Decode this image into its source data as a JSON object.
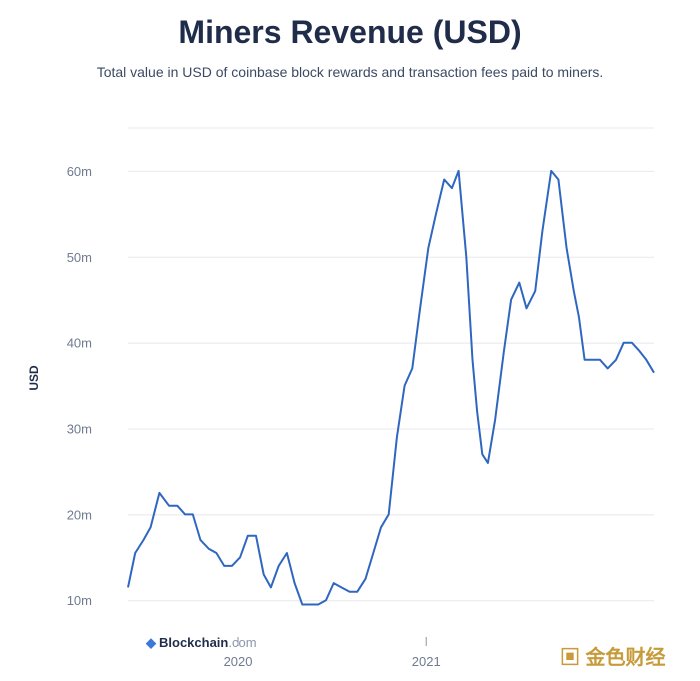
{
  "header": {
    "title": "Miners Revenue (USD)",
    "subtitle": "Total value in USD of coinbase block rewards and transaction fees paid to miners."
  },
  "watermark": {
    "brand": "Blockchain",
    "suffix": ".com"
  },
  "corner_logo": {
    "text": "金色财经"
  },
  "colors": {
    "line": "#2f67c0",
    "grid": "#e6e8ec",
    "title": "#1f2d4a"
  },
  "chart_data": {
    "type": "line",
    "title": "Miners Revenue (USD)",
    "subtitle": "Total value in USD of coinbase block rewards and transaction fees paid to miners.",
    "xlabel": "",
    "ylabel": "USD",
    "yticks": [
      10,
      20,
      30,
      40,
      50,
      60
    ],
    "ytick_labels": [
      "10m",
      "20m",
      "30m",
      "40m",
      "50m",
      "60m"
    ],
    "xticks": [
      "2020",
      "2021"
    ],
    "ylim": [
      7,
      65
    ],
    "xlim": [
      "2019-06-01",
      "2022-03-20"
    ],
    "grid": true,
    "series": [
      {
        "name": "",
        "x": [
          "2019-06-01",
          "2019-06-15",
          "2019-07-01",
          "2019-07-15",
          "2019-08-01",
          "2019-08-20",
          "2019-09-05",
          "2019-09-20",
          "2019-10-05",
          "2019-10-20",
          "2019-11-05",
          "2019-11-20",
          "2019-12-05",
          "2019-12-20",
          "2020-01-05",
          "2020-01-20",
          "2020-02-05",
          "2020-02-20",
          "2020-03-05",
          "2020-03-20",
          "2020-04-05",
          "2020-04-20",
          "2020-05-05",
          "2020-05-20",
          "2020-06-05",
          "2020-06-20",
          "2020-07-05",
          "2020-07-20",
          "2020-08-05",
          "2020-08-20",
          "2020-09-05",
          "2020-09-20",
          "2020-10-05",
          "2020-10-20",
          "2020-11-05",
          "2020-11-20",
          "2020-12-05",
          "2020-12-20",
          "2021-01-05",
          "2021-01-20",
          "2021-02-05",
          "2021-02-20",
          "2021-03-05",
          "2021-03-20",
          "2021-04-01",
          "2021-04-10",
          "2021-04-20",
          "2021-05-01",
          "2021-05-15",
          "2021-06-01",
          "2021-06-15",
          "2021-07-01",
          "2021-07-15",
          "2021-08-01",
          "2021-08-15",
          "2021-09-01",
          "2021-09-15",
          "2021-10-01",
          "2021-10-15",
          "2021-10-25",
          "2021-11-05",
          "2021-11-20",
          "2021-12-05",
          "2021-12-20",
          "2022-01-05",
          "2022-01-20",
          "2022-02-05",
          "2022-02-20",
          "2022-03-05",
          "2022-03-20"
        ],
        "y": [
          11.5,
          15.5,
          17,
          18.5,
          22.5,
          21,
          21,
          20,
          20,
          17,
          16,
          15.5,
          14,
          14,
          15,
          17.5,
          17.5,
          13,
          11.5,
          14,
          15.5,
          12,
          9.5,
          9.5,
          9.5,
          10,
          12,
          11.5,
          11,
          11,
          12.5,
          15.5,
          18.5,
          20,
          29,
          35,
          37,
          44,
          51,
          55,
          59,
          58,
          60,
          50,
          38,
          32,
          27,
          26,
          31,
          39,
          45,
          47,
          44,
          46,
          53,
          60,
          59,
          51,
          46,
          43,
          38,
          38,
          38,
          37,
          38,
          40,
          40,
          39,
          38,
          36.5
        ]
      }
    ]
  }
}
